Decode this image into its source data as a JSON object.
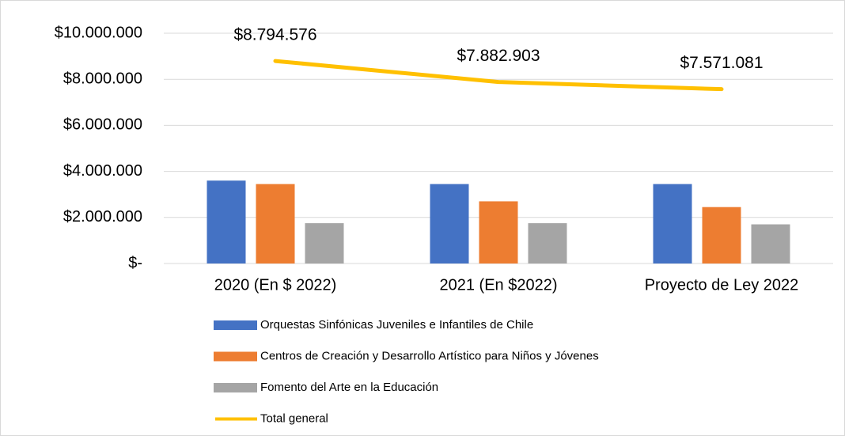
{
  "chart_data": {
    "type": "bar",
    "categories": [
      "2020 (En $ 2022)",
      "2021 (En $2022)",
      "Proyecto de Ley 2022"
    ],
    "series": [
      {
        "name": "Orquestas Sinfónicas Juveniles e Infantiles de Chile",
        "color": "#4472c4",
        "values": [
          3600000,
          3450000,
          3450000
        ]
      },
      {
        "name": "Centros de Creación y Desarrollo Artístico para Niños y Jóvenes",
        "color": "#ed7d31",
        "values": [
          3450000,
          2700000,
          2450000
        ]
      },
      {
        "name": "Fomento del Arte en la Educación",
        "color": "#a5a5a5",
        "values": [
          1750000,
          1750000,
          1700000
        ]
      },
      {
        "name": "Total general",
        "type": "line",
        "color": "#ffc000",
        "values": [
          8794576,
          7882903,
          7571081
        ],
        "value_labels": [
          "$8.794.576",
          "$7.882.903",
          "$7.571.081"
        ]
      }
    ],
    "ylim": [
      0,
      10000000
    ],
    "yticks": [
      {
        "value": 0,
        "label": "$-"
      },
      {
        "value": 2000000,
        "label": "$2.000.000"
      },
      {
        "value": 4000000,
        "label": "$4.000.000"
      },
      {
        "value": 6000000,
        "label": "$6.000.000"
      },
      {
        "value": 8000000,
        "label": "$8.000.000"
      },
      {
        "value": 10000000,
        "label": "$10.000.000"
      }
    ],
    "grid": true,
    "legend": "bottom"
  }
}
